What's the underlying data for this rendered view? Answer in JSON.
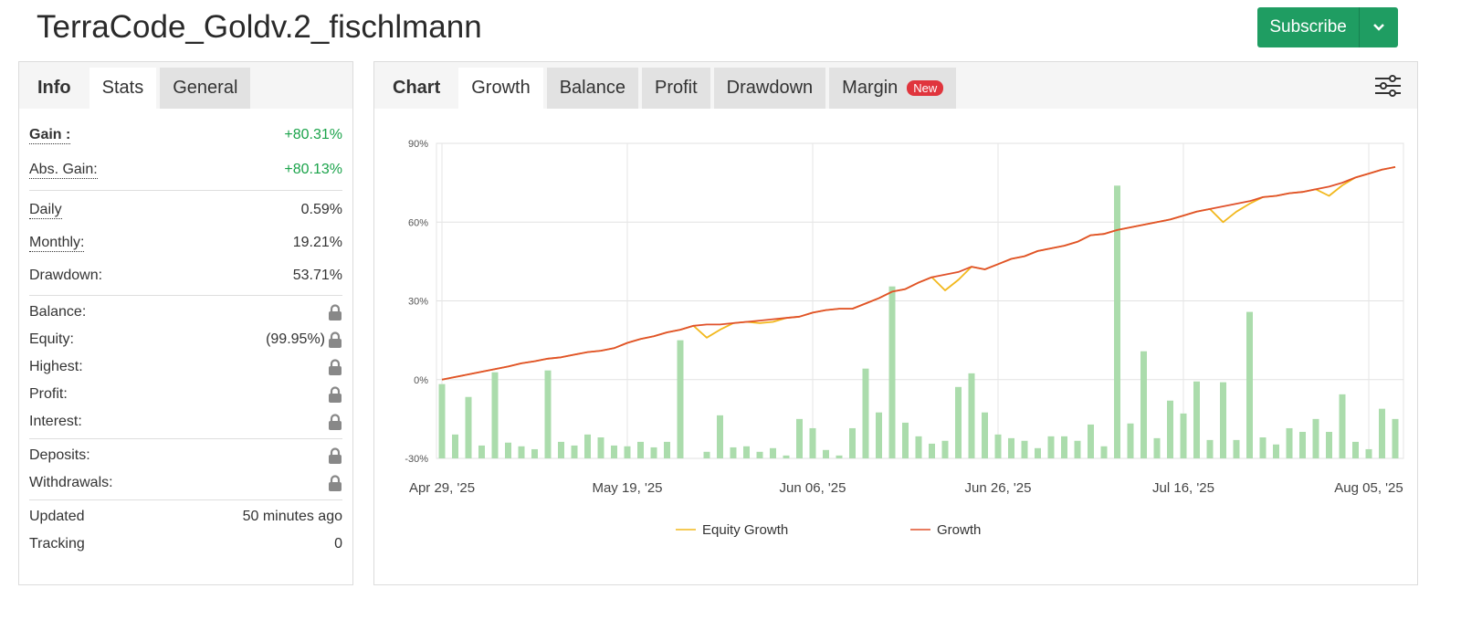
{
  "header": {
    "title": "TerraCode_Goldv.2_fischlmann",
    "subscribe": "Subscribe"
  },
  "left_tabs": [
    "Info",
    "Stats",
    "General"
  ],
  "stats": [
    [
      {
        "label": "Gain :",
        "value": "+80.31%"
      },
      {
        "label": "Abs. Gain:",
        "value": "+80.13%"
      }
    ],
    [
      {
        "label": "Daily",
        "value": "0.59%"
      },
      {
        "label": "Monthly:",
        "value": "19.21%"
      },
      {
        "label": "Drawdown:",
        "value": "53.71%"
      }
    ],
    [
      {
        "label": "Balance:"
      },
      {
        "label": "Equity:",
        "value": "(99.95%)"
      },
      {
        "label": "Highest:"
      },
      {
        "label": "Profit:"
      },
      {
        "label": "Interest:"
      }
    ],
    [
      {
        "label": "Deposits:"
      },
      {
        "label": "Withdrawals:"
      }
    ],
    [
      {
        "label": "Updated",
        "value": "50 minutes ago"
      },
      {
        "label": "Tracking",
        "value": "0"
      }
    ]
  ],
  "right_tabs": [
    "Chart",
    "Growth",
    "Balance",
    "Profit",
    "Drawdown",
    "Margin"
  ],
  "new_badge": "New",
  "chart_data": {
    "type": "line",
    "categories": [
      "Apr 29, '25",
      null,
      null,
      null,
      null,
      null,
      null,
      null,
      null,
      null,
      null,
      null,
      null,
      null,
      "May 19, '25",
      null,
      null,
      null,
      null,
      null,
      null,
      null,
      null,
      null,
      null,
      null,
      null,
      null,
      "Jun 06, '25",
      null,
      null,
      null,
      null,
      null,
      null,
      null,
      null,
      null,
      null,
      null,
      null,
      null,
      "Jun 26, '25",
      null,
      null,
      null,
      null,
      null,
      null,
      null,
      null,
      null,
      null,
      null,
      null,
      null,
      "Jul 16, '25",
      null,
      null,
      null,
      null,
      null,
      null,
      null,
      null,
      null,
      null,
      null,
      null,
      null,
      "Aug 05, '25",
      null,
      null
    ],
    "ylim": [
      -30,
      90
    ],
    "yticks": [
      {
        "value": -30,
        "label": "-30%"
      },
      {
        "value": 0,
        "label": "0%"
      },
      {
        "value": 30,
        "label": "30%"
      },
      {
        "value": 60,
        "label": "60%"
      },
      {
        "value": 90,
        "label": "90%"
      }
    ],
    "grid": true,
    "bar_color": "#abdcac",
    "bar_values": [
      -1.7,
      -20.9,
      -6.6,
      -25.1,
      2.8,
      -24,
      -25.4,
      -26.5,
      3.5,
      -23.7,
      -25.1,
      -20.9,
      -22,
      -25.1,
      -25.4,
      -23.7,
      -25.8,
      -23.7,
      15,
      null,
      -27.5,
      -13.6,
      -25.8,
      -25.4,
      -27.5,
      -26.1,
      -28.9,
      -15,
      -18.5,
      -26.8,
      -28.9,
      -18.5,
      4.2,
      -12.5,
      35.5,
      -16.4,
      -21.6,
      -24.4,
      -23.3,
      -2.8,
      2.4,
      -12.5,
      -20.9,
      -22.3,
      -23.3,
      -26.1,
      -21.6,
      -21.6,
      -23.3,
      -17.1,
      -25.4,
      73.9,
      -16.7,
      10.8,
      -22.3,
      -8,
      -12.9,
      -0.7,
      -23,
      -1,
      -23,
      25.8,
      -22,
      -24.7,
      -18.5,
      -19.9,
      -15,
      -19.9,
      -5.6,
      -23.7,
      -26.5,
      -11.1,
      -15
    ],
    "series": [
      {
        "name": "Equity Growth",
        "color": "#f2b81d",
        "values": [
          0,
          1,
          2,
          3,
          4,
          5,
          6.2,
          7,
          8,
          8.5,
          9.5,
          10.5,
          11,
          12,
          14,
          15.5,
          16.5,
          18,
          19,
          20.5,
          16,
          19,
          21.5,
          22,
          21.5,
          22,
          23.5,
          24,
          25.5,
          26.5,
          27,
          27,
          29,
          31,
          33.5,
          34.5,
          37,
          39,
          34,
          38,
          43,
          42,
          44,
          46,
          47,
          49,
          50,
          51,
          52.5,
          55,
          55.5,
          57,
          58,
          59,
          60,
          61,
          62.5,
          64,
          65,
          60,
          64,
          67,
          69.5,
          70,
          71,
          71.5,
          72.5,
          70,
          74,
          77,
          78.5,
          80,
          81
        ]
      },
      {
        "name": "Growth",
        "color": "#e0512b",
        "values": [
          0,
          1,
          2,
          3,
          4,
          5,
          6.2,
          7,
          8,
          8.5,
          9.5,
          10.5,
          11,
          12,
          14,
          15.5,
          16.5,
          18,
          19,
          20.5,
          21,
          21,
          21.5,
          22,
          22.5,
          23,
          23.5,
          24,
          25.5,
          26.5,
          27,
          27,
          29,
          31,
          33.5,
          34.5,
          37,
          39,
          40,
          41,
          43,
          42,
          44,
          46,
          47,
          49,
          50,
          51,
          52.5,
          55,
          55.5,
          57,
          58,
          59,
          60,
          61,
          62.5,
          64,
          65,
          66,
          67,
          68,
          69.5,
          70,
          71,
          71.5,
          72.5,
          73.5,
          75,
          77,
          78.5,
          80,
          81
        ]
      }
    ]
  }
}
